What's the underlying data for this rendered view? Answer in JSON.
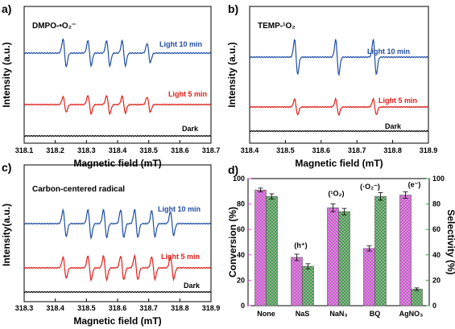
{
  "chart_data": [
    {
      "panel": "a)",
      "type": "line",
      "title": "DMPO-•O₂⁻",
      "xlabel": "Magnetic field (mT)",
      "ylabel": "Intensity (a.u.)",
      "xlim": [
        318.1,
        318.7
      ],
      "xticks": [
        "318.1",
        "318.2",
        "318.3",
        "318.4",
        "318.5",
        "318.6",
        "318.7"
      ],
      "series": [
        {
          "name": "Light 10 min",
          "color": "#1f4ea3",
          "peaks": [
            318.23,
            318.31,
            318.37,
            318.42,
            318.5
          ],
          "relative_intensity": [
            1,
            0.9,
            0.9,
            0.9,
            0.7
          ]
        },
        {
          "name": "Light 5 min",
          "color": "#e0201b",
          "peaks": [
            318.23,
            318.31,
            318.37,
            318.42,
            318.5
          ],
          "relative_intensity": [
            0.55,
            0.65,
            0.65,
            0.6,
            0.55
          ]
        },
        {
          "name": "Dark",
          "color": "#000000",
          "peaks": [],
          "relative_intensity": []
        }
      ]
    },
    {
      "panel": "b)",
      "type": "line",
      "title": "TEMP-¹O₂",
      "xlabel": "Magnetic field (mT)",
      "ylabel": "Intensity (a.u.)",
      "xlim": [
        318.4,
        318.9
      ],
      "xticks": [
        "318.4",
        "318.5",
        "318.6",
        "318.7",
        "318.8",
        "318.9"
      ],
      "series": [
        {
          "name": "Light 10 min",
          "color": "#1f4ea3",
          "peaks": [
            318.53,
            318.645,
            318.75
          ],
          "relative_intensity": [
            1,
            1,
            1
          ]
        },
        {
          "name": "Light 5 min",
          "color": "#e0201b",
          "peaks": [
            318.53,
            318.645,
            318.75
          ],
          "relative_intensity": [
            0.45,
            0.45,
            0.45
          ]
        },
        {
          "name": "Dark",
          "color": "#000000",
          "peaks": [],
          "relative_intensity": []
        }
      ]
    },
    {
      "panel": "c)",
      "type": "line",
      "title": "Carbon-centered radical",
      "xlabel": "Magnetic field (mT)",
      "ylabel": "Intensity(a.u.)",
      "xlim": [
        318.3,
        318.9
      ],
      "xticks": [
        "318.3",
        "318.4",
        "318.5",
        "318.6",
        "318.7",
        "318.8",
        "318.9"
      ],
      "series": [
        {
          "name": "Light 10 min",
          "color": "#1f4ea3",
          "peaks": [
            318.43,
            318.51,
            318.56,
            318.615,
            318.66,
            318.715,
            318.775
          ],
          "relative_intensity": [
            0.95,
            1,
            1,
            1,
            1,
            0.95,
            0.85
          ]
        },
        {
          "name": "Light 5 min",
          "color": "#e0201b",
          "peaks": [
            318.43,
            318.51,
            318.56,
            318.615,
            318.66,
            318.715,
            318.775
          ],
          "relative_intensity": [
            0.75,
            0.85,
            0.85,
            0.85,
            0.85,
            0.8,
            0.8
          ]
        },
        {
          "name": "Dark",
          "color": "#000000",
          "peaks": [],
          "relative_intensity": []
        }
      ]
    },
    {
      "panel": "d)",
      "type": "bar",
      "categories": [
        "None",
        "NaS",
        "NaN₃",
        "BQ",
        "AgNO₃"
      ],
      "ylabel_left": "Conversion (%)",
      "ylabel_right": "Selectivity (%)",
      "ylim": [
        0,
        100
      ],
      "yticks": [
        "0",
        "20",
        "40",
        "60",
        "80",
        "100"
      ],
      "annotations": [
        "(h⁺)",
        "(¹O₂)",
        "(·O₂⁻)",
        "(e⁻)"
      ],
      "series": [
        {
          "name": "Conversion",
          "color": "#e23ee6",
          "values": [
            91,
            38,
            77,
            45,
            87
          ],
          "errors": [
            1.5,
            2.5,
            3,
            2,
            2.5
          ]
        },
        {
          "name": "Selectivity",
          "color": "#2f9a3a",
          "values": [
            86,
            31,
            74,
            86,
            13
          ],
          "errors": [
            2,
            2,
            2.5,
            3,
            1
          ]
        }
      ]
    }
  ]
}
